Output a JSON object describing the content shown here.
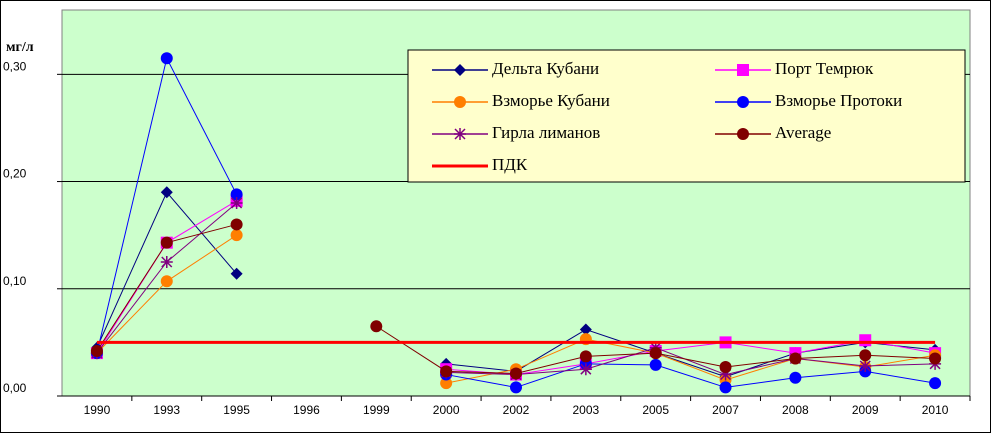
{
  "chart_data": {
    "type": "line",
    "ylabel": "мг/л",
    "categories": [
      "1990",
      "1993",
      "1995",
      "1996",
      "1999",
      "2000",
      "2002",
      "2003",
      "2005",
      "2007",
      "2008",
      "2009",
      "2010"
    ],
    "ylim": [
      0,
      0.36
    ],
    "yticks": [
      {
        "value": 0,
        "label": "0,00"
      },
      {
        "value": 0.1,
        "label": "0,10"
      },
      {
        "value": 0.2,
        "label": "0,20"
      },
      {
        "value": 0.3,
        "label": "0,30"
      }
    ],
    "grid": true,
    "series": [
      {
        "name": "Дельта Кубани",
        "color": "#000080",
        "marker": "diamond",
        "values": [
          0.045,
          0.19,
          0.114,
          null,
          null,
          0.03,
          0.023,
          0.062,
          0.04,
          0.018,
          0.04,
          0.05,
          0.043
        ]
      },
      {
        "name": "Порт Темрюк",
        "color": "#ff00ff",
        "marker": "square",
        "values": [
          0.04,
          0.143,
          0.182,
          null,
          null,
          0.025,
          0.02,
          0.03,
          0.042,
          0.05,
          0.04,
          0.052,
          0.04
        ]
      },
      {
        "name": "Взморье Кубани",
        "color": "#ff7f00",
        "marker": "circle",
        "values": [
          0.04,
          0.107,
          0.15,
          null,
          null,
          0.012,
          0.025,
          0.053,
          0.04,
          0.015,
          0.035,
          0.027,
          0.038
        ]
      },
      {
        "name": "Взморье Протоки",
        "color": "#0000ff",
        "marker": "circle",
        "values": [
          0.04,
          0.315,
          0.188,
          null,
          null,
          0.02,
          0.008,
          0.03,
          0.029,
          0.008,
          0.017,
          0.023,
          0.012
        ]
      },
      {
        "name": "Гирла лиманов",
        "color": "#800080",
        "marker": "star",
        "values": [
          0.04,
          0.125,
          0.18,
          null,
          null,
          0.022,
          0.02,
          0.025,
          0.045,
          0.02,
          0.035,
          0.028,
          0.03
        ]
      },
      {
        "name": "Average",
        "color": "#800000",
        "marker": "circle",
        "values": [
          0.042,
          0.143,
          0.16,
          null,
          0.065,
          0.023,
          0.021,
          0.037,
          0.04,
          0.027,
          0.035,
          0.038,
          0.035
        ]
      },
      {
        "name": "ПДК",
        "color": "#ff0000",
        "marker": "none",
        "values": [
          0.05,
          0.05,
          0.05,
          0.05,
          0.05,
          0.05,
          0.05,
          0.05,
          0.05,
          0.05,
          0.05,
          0.05,
          0.05
        ]
      }
    ]
  }
}
